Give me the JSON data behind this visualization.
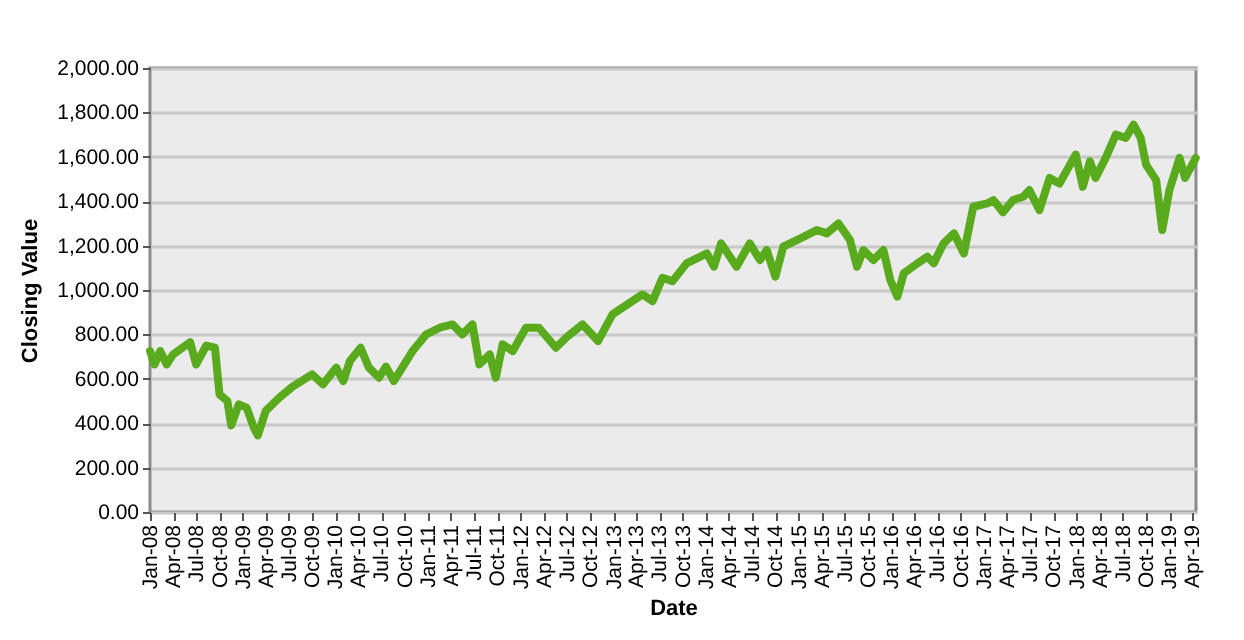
{
  "chart_data": {
    "type": "line",
    "xlabel": "Date",
    "ylabel": "Closing Value",
    "x": [
      "2008-01-01",
      "2008-01-19",
      "2008-02-10",
      "2008-03-07",
      "2008-04-01",
      "2008-06-07",
      "2008-07-01",
      "2008-08-10",
      "2008-09-13",
      "2008-10-01",
      "2008-11-01",
      "2008-11-16",
      "2008-12-16",
      "2009-01-16",
      "2009-02-13",
      "2009-03-01",
      "2009-04-01",
      "2009-05-25",
      "2009-07-16",
      "2009-10-01",
      "2009-11-13",
      "2010-01-04",
      "2010-02-01",
      "2010-02-27",
      "2010-04-10",
      "2010-05-13",
      "2010-06-22",
      "2010-07-19",
      "2010-08-19",
      "2010-11-01",
      "2010-12-25",
      "2011-02-16",
      "2011-04-07",
      "2011-05-16",
      "2011-06-25",
      "2011-07-22",
      "2011-09-01",
      "2011-09-25",
      "2011-10-22",
      "2011-12-01",
      "2012-01-22",
      "2012-03-13",
      "2012-05-19",
      "2012-06-28",
      "2012-09-01",
      "2012-11-01",
      "2012-12-28",
      "2013-03-16",
      "2013-04-25",
      "2013-06-04",
      "2013-07-13",
      "2013-08-22",
      "2013-10-16",
      "2014-01-04",
      "2014-02-01",
      "2014-03-01",
      "2014-05-01",
      "2014-06-22",
      "2014-08-01",
      "2014-08-28",
      "2014-10-01",
      "2014-11-01",
      "2014-12-25",
      "2015-03-13",
      "2015-04-22",
      "2015-06-07",
      "2015-07-22",
      "2015-08-19",
      "2015-09-13",
      "2015-10-22",
      "2015-12-01",
      "2015-12-28",
      "2016-01-25",
      "2016-02-19",
      "2016-04-13",
      "2016-05-22",
      "2016-06-16",
      "2016-07-25",
      "2016-09-04",
      "2016-10-13",
      "2016-11-19",
      "2017-01-13",
      "2017-02-07",
      "2017-03-16",
      "2017-04-25",
      "2017-06-04",
      "2017-06-28",
      "2017-08-07",
      "2017-09-16",
      "2017-10-25",
      "2017-12-28",
      "2018-01-25",
      "2018-02-22",
      "2018-03-16",
      "2018-04-25",
      "2018-06-04",
      "2018-07-13",
      "2018-08-13",
      "2018-09-10",
      "2018-10-01",
      "2018-11-10",
      "2018-12-04",
      "2019-01-01",
      "2019-02-10",
      "2019-03-04",
      "2019-04-15"
    ],
    "series": [
      {
        "color": "#5aaa1e",
        "values": [
          725,
          665,
          725,
          665,
          710,
          765,
          665,
          750,
          740,
          530,
          500,
          390,
          485,
          470,
          380,
          345,
          455,
          515,
          565,
          620,
          575,
          650,
          590,
          680,
          740,
          650,
          605,
          655,
          590,
          725,
          800,
          830,
          845,
          800,
          845,
          665,
          710,
          605,
          755,
          725,
          830,
          830,
          740,
          785,
          845,
          770,
          890,
          950,
          980,
          950,
          1055,
          1040,
          1120,
          1165,
          1105,
          1210,
          1105,
          1210,
          1135,
          1180,
          1060,
          1195,
          1225,
          1270,
          1255,
          1300,
          1225,
          1105,
          1180,
          1135,
          1180,
          1045,
          970,
          1075,
          1120,
          1150,
          1120,
          1210,
          1255,
          1165,
          1375,
          1390,
          1405,
          1350,
          1405,
          1420,
          1450,
          1360,
          1505,
          1480,
          1610,
          1465,
          1580,
          1505,
          1595,
          1700,
          1685,
          1745,
          1685,
          1565,
          1495,
          1270,
          1450,
          1595,
          1505,
          1595
        ]
      }
    ],
    "xlim": [
      "2008-01-01",
      "2019-04-16"
    ],
    "xticks": [
      {
        "value": "2008-01-01",
        "label": "Jan-08"
      },
      {
        "value": "2008-04-01",
        "label": "Apr-08"
      },
      {
        "value": "2008-07-01",
        "label": "Jul-08"
      },
      {
        "value": "2008-10-01",
        "label": "Oct-08"
      },
      {
        "value": "2009-01-01",
        "label": "Jan-09"
      },
      {
        "value": "2009-04-01",
        "label": "Apr-09"
      },
      {
        "value": "2009-07-01",
        "label": "Jul-09"
      },
      {
        "value": "2009-10-01",
        "label": "Oct-09"
      },
      {
        "value": "2010-01-01",
        "label": "Jan-10"
      },
      {
        "value": "2010-04-01",
        "label": "Apr-10"
      },
      {
        "value": "2010-07-01",
        "label": "Jul-10"
      },
      {
        "value": "2010-10-01",
        "label": "Oct-10"
      },
      {
        "value": "2011-01-01",
        "label": "Jan-11"
      },
      {
        "value": "2011-04-01",
        "label": "Apr-11"
      },
      {
        "value": "2011-07-01",
        "label": "Jul-11"
      },
      {
        "value": "2011-10-01",
        "label": "Oct-11"
      },
      {
        "value": "2012-01-01",
        "label": "Jan-12"
      },
      {
        "value": "2012-04-01",
        "label": "Apr-12"
      },
      {
        "value": "2012-07-01",
        "label": "Jul-12"
      },
      {
        "value": "2012-10-01",
        "label": "Oct-12"
      },
      {
        "value": "2013-01-01",
        "label": "Jan-13"
      },
      {
        "value": "2013-04-01",
        "label": "Apr-13"
      },
      {
        "value": "2013-07-01",
        "label": "Jul-13"
      },
      {
        "value": "2013-10-01",
        "label": "Oct-13"
      },
      {
        "value": "2014-01-01",
        "label": "Jan-14"
      },
      {
        "value": "2014-04-01",
        "label": "Apr-14"
      },
      {
        "value": "2014-07-01",
        "label": "Jul-14"
      },
      {
        "value": "2014-10-01",
        "label": "Oct-14"
      },
      {
        "value": "2015-01-01",
        "label": "Jan-15"
      },
      {
        "value": "2015-04-01",
        "label": "Apr-15"
      },
      {
        "value": "2015-07-01",
        "label": "Jul-15"
      },
      {
        "value": "2015-10-01",
        "label": "Oct-15"
      },
      {
        "value": "2016-01-01",
        "label": "Jan-16"
      },
      {
        "value": "2016-04-01",
        "label": "Apr-16"
      },
      {
        "value": "2016-07-01",
        "label": "Jul-16"
      },
      {
        "value": "2016-10-01",
        "label": "Oct-16"
      },
      {
        "value": "2017-01-01",
        "label": "Jan-17"
      },
      {
        "value": "2017-04-01",
        "label": "Apr-17"
      },
      {
        "value": "2017-07-01",
        "label": "Jul-17"
      },
      {
        "value": "2017-10-01",
        "label": "Oct-17"
      },
      {
        "value": "2018-01-01",
        "label": "Jan-18"
      },
      {
        "value": "2018-04-01",
        "label": "Apr-18"
      },
      {
        "value": "2018-07-01",
        "label": "Jul-18"
      },
      {
        "value": "2018-10-01",
        "label": "Oct-18"
      },
      {
        "value": "2019-01-01",
        "label": "Jan-19"
      },
      {
        "value": "2019-04-01",
        "label": "Apr-19"
      }
    ],
    "ylim": [
      0,
      2000
    ],
    "yticks": [
      {
        "value": 0,
        "label": "0.00"
      },
      {
        "value": 200,
        "label": "200.00"
      },
      {
        "value": 400,
        "label": "400.00"
      },
      {
        "value": 600,
        "label": "600.00"
      },
      {
        "value": 800,
        "label": "800.00"
      },
      {
        "value": 1000,
        "label": "1,000.00"
      },
      {
        "value": 1200,
        "label": "1,200.00"
      },
      {
        "value": 1400,
        "label": "1,400.00"
      },
      {
        "value": 1600,
        "label": "1,600.00"
      },
      {
        "value": 1800,
        "label": "1,800.00"
      },
      {
        "value": 2000,
        "label": "2,000.00"
      }
    ],
    "grid": "y",
    "legend": false,
    "marker": "none",
    "line_style": "solid"
  }
}
